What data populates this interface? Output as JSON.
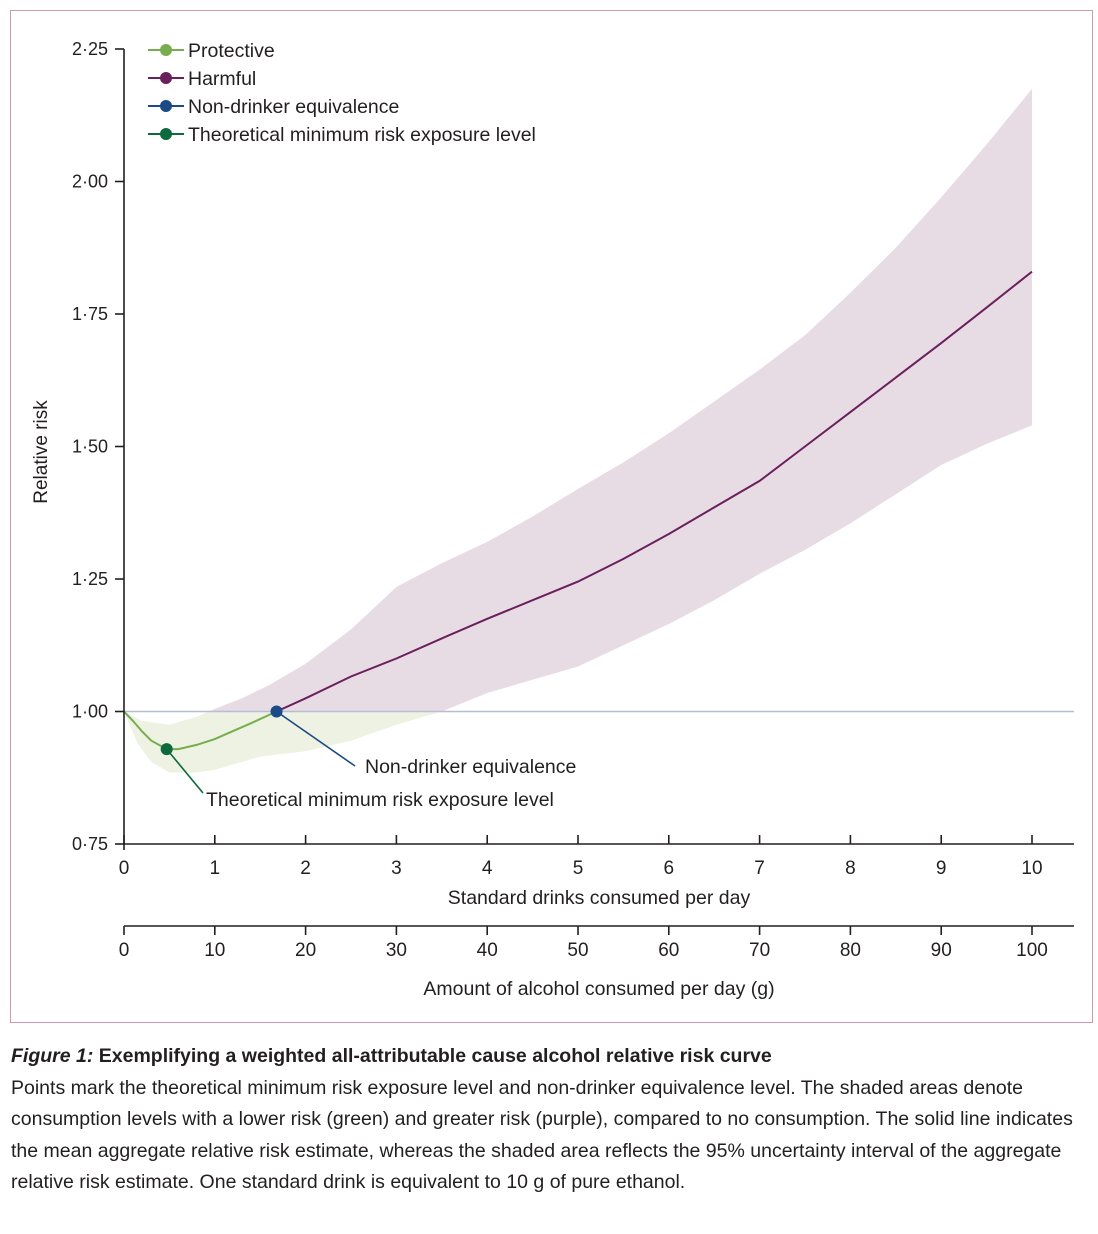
{
  "chart_data": {
    "type": "line",
    "title": "",
    "ylabel": "Relative risk",
    "xlabel": "Standard drinks consumed per day",
    "x2label": "Amount of alcohol consumed per day (g)",
    "xlim": [
      0,
      10
    ],
    "ylim": [
      0.75,
      2.25
    ],
    "yticks": [
      "0·75",
      "1·00",
      "1·25",
      "1·50",
      "1·75",
      "2·00",
      "2·25"
    ],
    "ytick_values": [
      0.75,
      1.0,
      1.25,
      1.5,
      1.75,
      2.0,
      2.25
    ],
    "xticks": [
      "0",
      "1",
      "2",
      "3",
      "4",
      "5",
      "6",
      "7",
      "8",
      "9",
      "10"
    ],
    "xtick_values": [
      0,
      1,
      2,
      3,
      4,
      5,
      6,
      7,
      8,
      9,
      10
    ],
    "x2ticks": [
      "0",
      "10",
      "20",
      "30",
      "40",
      "50",
      "60",
      "70",
      "80",
      "90",
      "100"
    ],
    "reference_line": 1.0,
    "grid": false,
    "legend_position": "top-left",
    "legend": [
      {
        "label": "Protective",
        "color": "#78ad4f"
      },
      {
        "label": "Harmful",
        "color": "#6b1f5c"
      },
      {
        "label": "Non-drinker equivalence",
        "color": "#1c4a87"
      },
      {
        "label": "Theoretical minimum risk exposure level",
        "color": "#0c6a3c"
      }
    ],
    "series": [
      {
        "name": "Mean relative risk",
        "x": [
          0,
          0.1,
          0.2,
          0.3,
          0.47,
          0.6,
          0.8,
          1.0,
          1.2,
          1.4,
          1.68,
          2.0,
          2.5,
          3.0,
          3.5,
          4.0,
          4.5,
          5.0,
          5.5,
          6.0,
          6.5,
          7.0,
          7.5,
          8.0,
          8.5,
          9.0,
          9.5,
          10.0
        ],
        "y": [
          1.0,
          0.982,
          0.962,
          0.945,
          0.929,
          0.929,
          0.937,
          0.948,
          0.963,
          0.978,
          1.0,
          1.025,
          1.066,
          1.1,
          1.138,
          1.175,
          1.21,
          1.245,
          1.288,
          1.335,
          1.385,
          1.435,
          1.5,
          1.565,
          1.63,
          1.695,
          1.762,
          1.83
        ]
      },
      {
        "name": "95% UI upper",
        "x": [
          0,
          0.2,
          0.5,
          0.8,
          1.0,
          1.3,
          1.6,
          2.0,
          2.5,
          3.0,
          3.5,
          4.0,
          4.5,
          5.0,
          5.5,
          6.0,
          6.5,
          7.0,
          7.5,
          8.0,
          8.5,
          9.0,
          9.5,
          10.0
        ],
        "y": [
          1.0,
          0.982,
          0.975,
          0.99,
          1.005,
          1.025,
          1.05,
          1.09,
          1.155,
          1.235,
          1.28,
          1.32,
          1.368,
          1.42,
          1.47,
          1.525,
          1.585,
          1.645,
          1.71,
          1.79,
          1.875,
          1.97,
          2.07,
          2.175
        ]
      },
      {
        "name": "95% UI lower",
        "x": [
          0,
          0.15,
          0.3,
          0.5,
          0.8,
          1.0,
          1.5,
          2.0,
          2.5,
          3.0,
          3.5,
          4.0,
          4.5,
          5.0,
          5.5,
          6.0,
          6.5,
          7.0,
          7.5,
          8.0,
          8.5,
          9.0,
          9.5,
          10.0
        ],
        "y": [
          1.0,
          0.94,
          0.905,
          0.885,
          0.885,
          0.89,
          0.915,
          0.925,
          0.945,
          0.975,
          1.0,
          1.035,
          1.06,
          1.085,
          1.125,
          1.165,
          1.21,
          1.26,
          1.305,
          1.355,
          1.41,
          1.465,
          1.505,
          1.54
        ]
      }
    ],
    "points": [
      {
        "name": "Theoretical minimum risk exposure level",
        "x": 0.47,
        "y": 0.929,
        "color": "#0c6a3c"
      },
      {
        "name": "Non-drinker equivalence",
        "x": 1.68,
        "y": 1.0,
        "color": "#1c4a87"
      }
    ],
    "annotations": [
      {
        "text": "Non-drinker equivalence",
        "target": "Non-drinker equivalence"
      },
      {
        "text": "Theoretical minimum risk exposure level",
        "target": "Theoretical minimum risk exposure level"
      }
    ],
    "colors": {
      "protective_line": "#78ad4f",
      "protective_band": "#edf2e2",
      "harmful_line": "#6b1f5c",
      "harmful_band": "#e7dce4",
      "reference_line": "#b8bdd6",
      "axis": "#231f20"
    }
  },
  "caption": {
    "figure_label": "Figure 1:",
    "title": " Exemplifying a weighted all-attributable cause alcohol relative risk curve",
    "body": "Points mark the theoretical minimum risk exposure level and non-drinker equivalence level. The shaded areas denote consumption levels with a lower risk (green) and greater risk (purple), compared to no consumption. The solid line indicates the mean aggregate relative risk estimate, whereas the shaded area reflects the 95% uncertainty interval of the aggregate relative risk estimate. One standard drink is equivalent to 10 g of pure ethanol."
  }
}
